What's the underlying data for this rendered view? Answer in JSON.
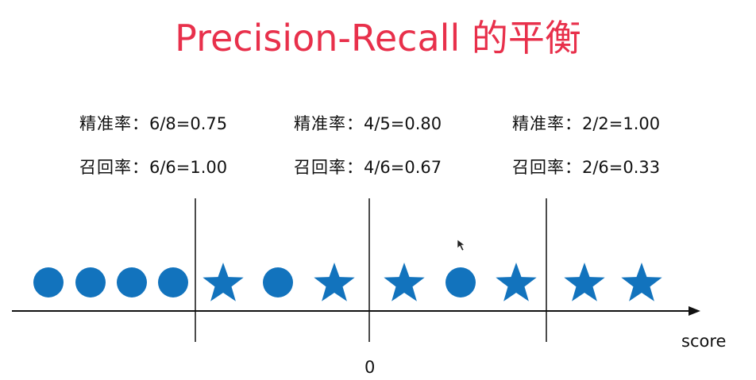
{
  "title": "Precision-Recall 的平衡",
  "title_color": "#e8304b",
  "marker_color": "#1273bd",
  "thresholds": [
    {
      "precision_label": "精准率：",
      "precision_value": "6/8=0.75",
      "recall_label": "召回率：",
      "recall_value": "6/6=1.00"
    },
    {
      "precision_label": "精准率：",
      "precision_value": "4/5=0.80",
      "recall_label": "召回率：",
      "recall_value": "4/6=0.67"
    },
    {
      "precision_label": "精准率：",
      "precision_value": "2/2=1.00",
      "recall_label": "召回率：",
      "recall_value": "2/6=0.33"
    }
  ],
  "samples": [
    "circle",
    "circle",
    "circle",
    "circle",
    "star",
    "circle",
    "star",
    "star",
    "circle",
    "star",
    "star",
    "star"
  ],
  "axis": {
    "label": "score",
    "zero_label": "0"
  }
}
